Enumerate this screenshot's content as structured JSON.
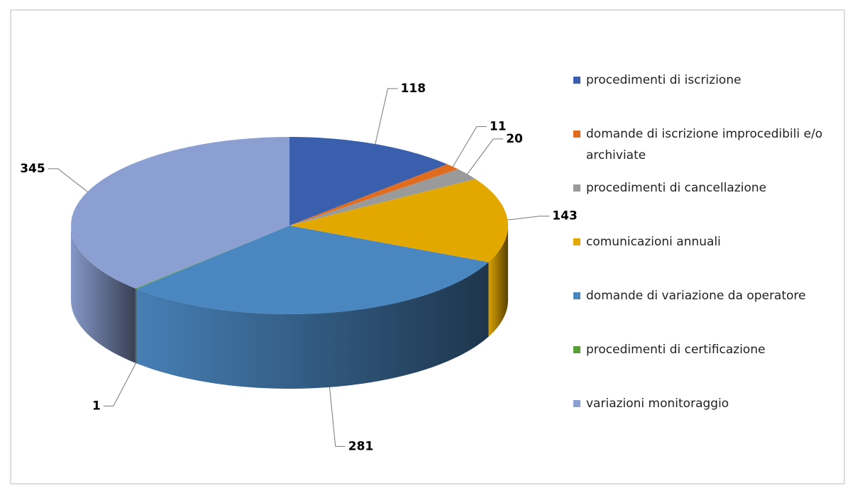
{
  "chart_data": {
    "type": "pie",
    "categories": [
      "procedimenti di iscrizione",
      "domande di iscrizione improcedibili e/o archiviate",
      "procedimenti di cancellazione",
      "comunicazioni annuali",
      "domande di variazione da operatore",
      "procedimenti di certificazione",
      "variazioni monitoraggio"
    ],
    "values": [
      118,
      11,
      20,
      143,
      281,
      1,
      345
    ],
    "colors": [
      "#3a5fad",
      "#e06c1f",
      "#9a9a9a",
      "#e3a800",
      "#4a86bf",
      "#5a9e3a",
      "#8c9fd2"
    ],
    "legend": "right"
  }
}
